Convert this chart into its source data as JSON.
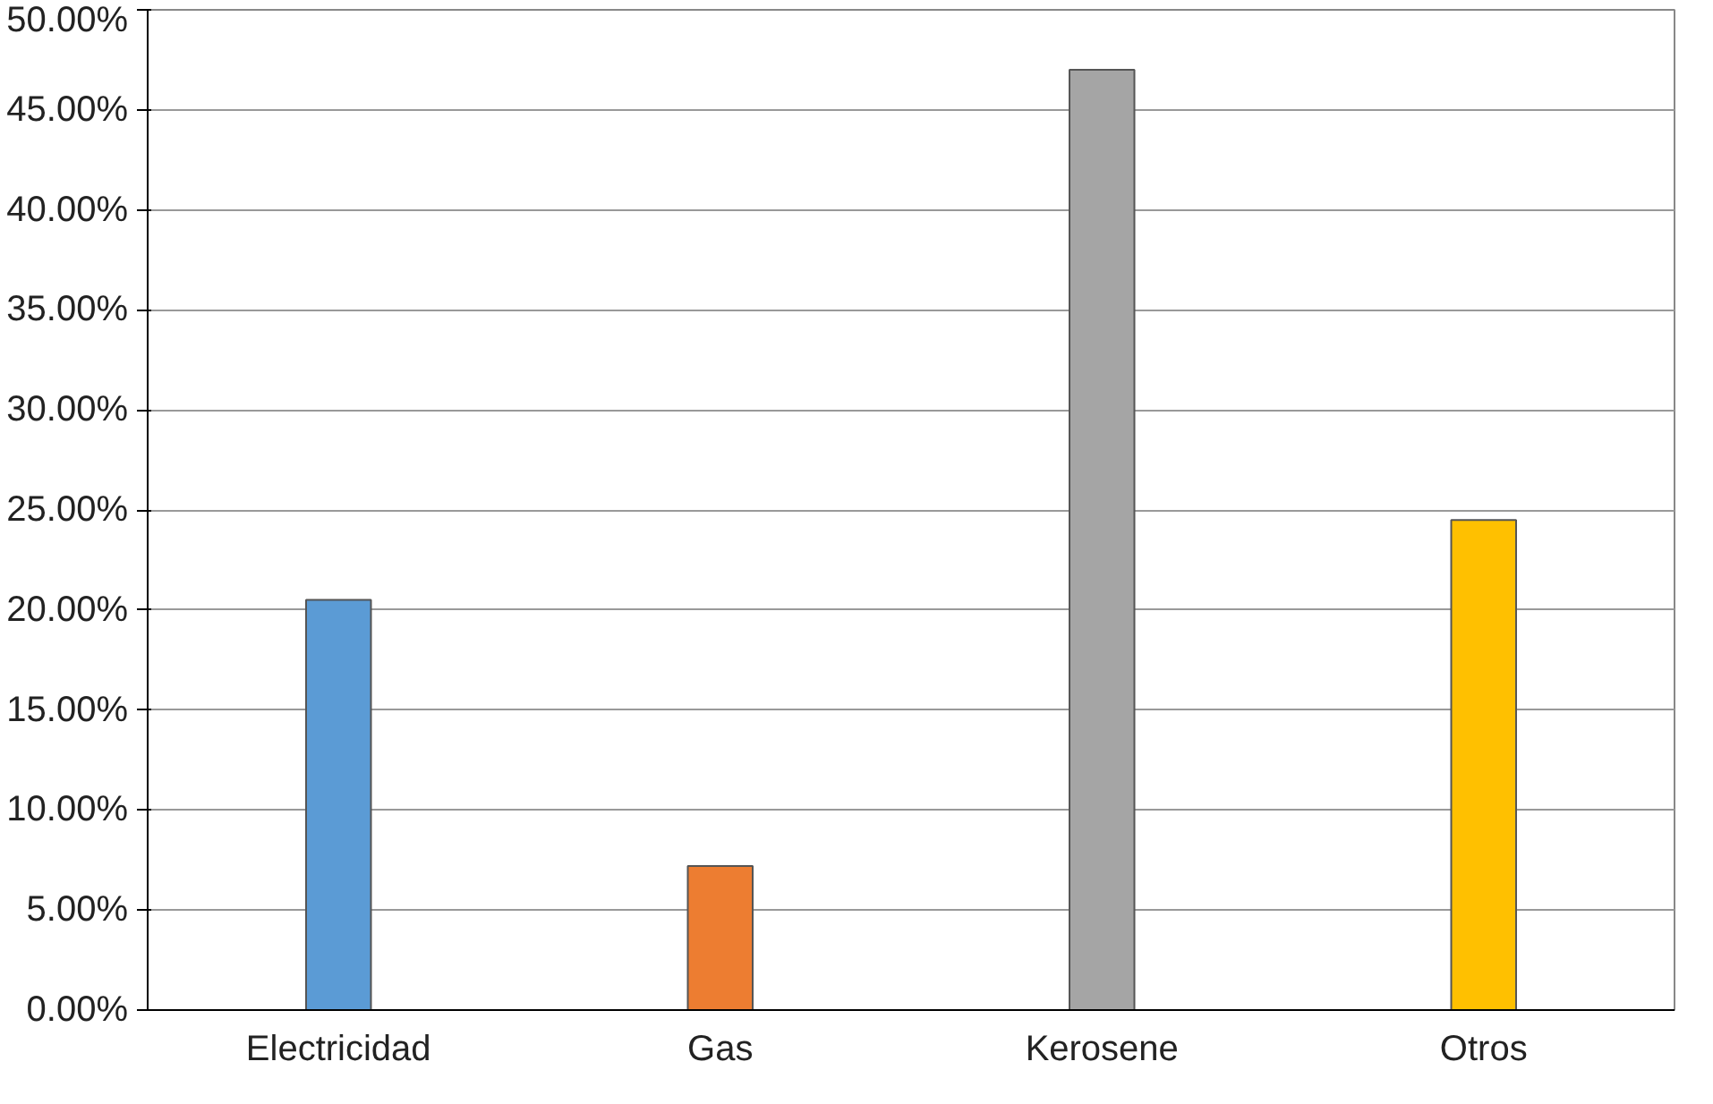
{
  "chart_data": {
    "type": "bar",
    "categories": [
      "Electricidad",
      "Gas",
      "Kerosene",
      "Otros"
    ],
    "values": [
      20.5,
      7.2,
      47,
      24.5
    ],
    "colors": [
      "#5b9bd5",
      "#ed7d31",
      "#a5a5a5",
      "#ffc000"
    ],
    "ylim": [
      0,
      50
    ],
    "yticks": [
      {
        "value": 0,
        "label": "0.00%"
      },
      {
        "value": 5,
        "label": "5.00%"
      },
      {
        "value": 10,
        "label": "10.00%"
      },
      {
        "value": 15,
        "label": "15.00%"
      },
      {
        "value": 20,
        "label": "20.00%"
      },
      {
        "value": 25,
        "label": "25.00%"
      },
      {
        "value": 30,
        "label": "30.00%"
      },
      {
        "value": 35,
        "label": "35.00%"
      },
      {
        "value": 40,
        "label": "40.00%"
      },
      {
        "value": 45,
        "label": "45.00%"
      },
      {
        "value": 50,
        "label": "50.00%"
      }
    ],
    "grid": "y"
  }
}
